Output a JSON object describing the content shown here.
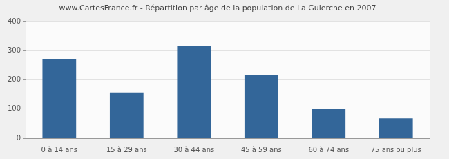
{
  "chart_data": {
    "type": "bar",
    "title": "www.CartesFrance.fr - Répartition par âge de la population de La Guierche en 2007",
    "categories": [
      "0 à 14 ans",
      "15 à 29 ans",
      "30 à 44 ans",
      "45 à 59 ans",
      "60 à 74 ans",
      "75 ans ou plus"
    ],
    "values": [
      270,
      157,
      315,
      217,
      100,
      68
    ],
    "color": "#336699",
    "ylim": [
      0,
      400
    ],
    "yticks": [
      0,
      100,
      200,
      300,
      400
    ],
    "grid": true
  }
}
